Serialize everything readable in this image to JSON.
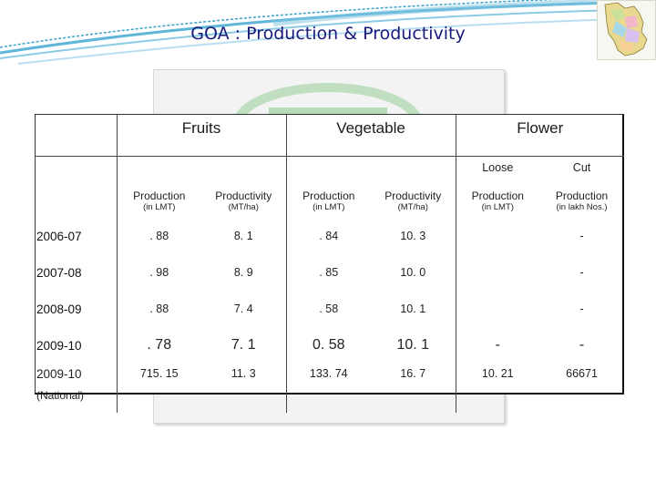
{
  "slide": {
    "title": "GOA : Production & Productivity"
  },
  "table": {
    "groups": {
      "fruits": "Fruits",
      "vegetable": "Vegetable",
      "flower": "Flower"
    },
    "flower_sub": {
      "loose": "Loose",
      "cut": "Cut"
    },
    "col_labels": [
      "Production",
      "Productivity",
      "Production",
      "Productivity",
      "Production",
      "Production"
    ],
    "col_units": [
      "(in LMT)",
      "(MT/ha)",
      "(in LMT)",
      "(MT/ha)",
      "(in LMT)",
      "(in lakh Nos.)"
    ],
    "rows": [
      {
        "year": "2006-07",
        "values": [
          ". 88",
          "8. 1",
          ". 84",
          "10. 3",
          "",
          "-"
        ]
      },
      {
        "year": "2007-08",
        "values": [
          ". 98",
          "8. 9",
          ". 85",
          "10. 0",
          "",
          "-"
        ]
      },
      {
        "year": "2008-09",
        "values": [
          ". 88",
          "7. 4",
          ". 58",
          "10. 1",
          "",
          "-"
        ]
      },
      {
        "year": "2009-10",
        "values": [
          ". 78",
          "7. 1",
          "0. 58",
          "10. 1",
          "-",
          "-"
        ]
      }
    ],
    "national": {
      "year": "2009-10",
      "sub": "(National)",
      "values": [
        "715. 15",
        "11. 3",
        "133. 74",
        "16. 7",
        "10. 21",
        "66671"
      ]
    }
  },
  "colors": {
    "swoosh": "#5fb6d8",
    "logo": "#9fcf9f",
    "title_text": "#1a1a7a"
  }
}
